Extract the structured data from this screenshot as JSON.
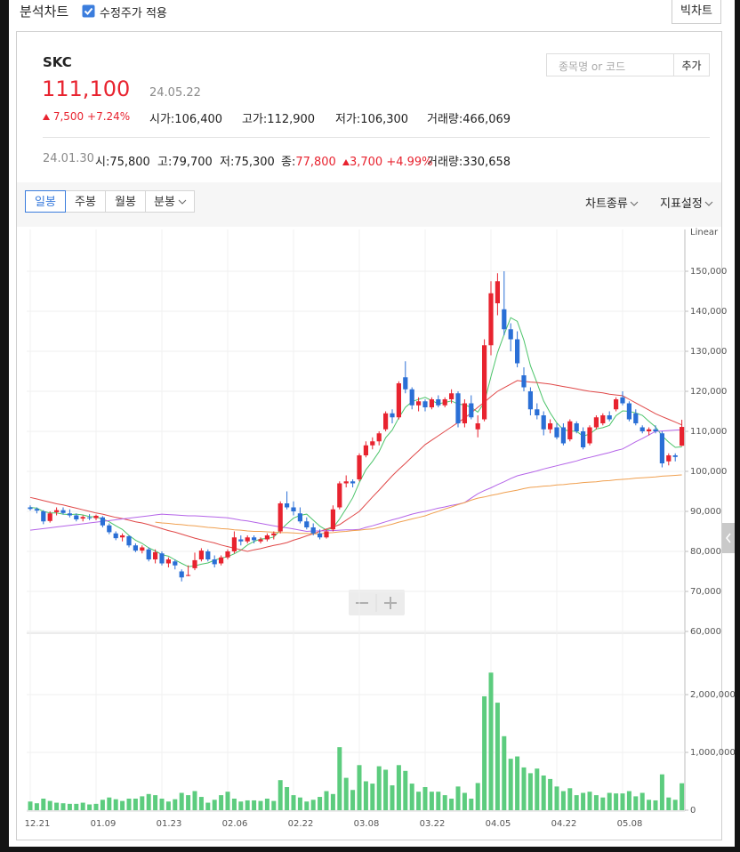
{
  "ui": {
    "top": {
      "title": "분석차트",
      "adjusted": "수정주가 적용",
      "big_chart": "빅차트"
    },
    "stock": {
      "name": "SKC",
      "price": "111,100",
      "date": "24.05.22",
      "change": "7,500",
      "change_pct": "+7.24%",
      "open": "시가:106,400",
      "high": "고가:112,900",
      "low": "저가:106,300",
      "volume": "거래량:466,069"
    },
    "search": {
      "placeholder": "종목명 or 코드",
      "button": "추가"
    },
    "hover": {
      "date": "24.01.30",
      "open": "시:75,800",
      "high": "고:79,700",
      "low": "저:75,300",
      "close_label": "종:",
      "close": "77,800",
      "change": "3,700",
      "change_pct": "+4.99%",
      "volume": "거래량:330,658"
    },
    "tabs": [
      "일봉",
      "주봉",
      "월봉",
      "분봉"
    ],
    "menus": [
      "차트종류",
      "지표설정"
    ]
  },
  "chart_data": {
    "type": "candlestick",
    "scale_label": "Linear",
    "categories": [
      "12.21",
      null,
      null,
      null,
      null,
      null,
      null,
      null,
      null,
      null,
      "01.09",
      null,
      null,
      null,
      null,
      null,
      null,
      null,
      null,
      null,
      "01.23",
      null,
      null,
      null,
      null,
      null,
      null,
      null,
      null,
      null,
      "02.06",
      null,
      null,
      null,
      null,
      null,
      null,
      null,
      null,
      null,
      "02.22",
      null,
      null,
      null,
      null,
      null,
      null,
      null,
      null,
      null,
      "03.08",
      null,
      null,
      null,
      null,
      null,
      null,
      null,
      null,
      null,
      "03.22",
      null,
      null,
      null,
      null,
      null,
      null,
      null,
      null,
      null,
      "04.05",
      null,
      null,
      null,
      null,
      null,
      null,
      null,
      null,
      null,
      "04.22",
      null,
      null,
      null,
      null,
      null,
      null,
      null,
      null,
      null,
      "05.08",
      null,
      null,
      null,
      null,
      null,
      null,
      null,
      null,
      null
    ],
    "open": [
      91000,
      90600,
      90000,
      87600,
      89800,
      90300,
      89500,
      89000,
      88200,
      88500,
      88300,
      88500,
      86500,
      84500,
      83500,
      83800,
      81500,
      80200,
      80500,
      78000,
      79500,
      77000,
      77500,
      75000,
      74000,
      75800,
      78000,
      80000,
      78000,
      77000,
      78500,
      80000,
      83000,
      82500,
      83500,
      82500,
      83000,
      84000,
      85000,
      92000,
      91000,
      89500,
      87500,
      86000,
      84500,
      83500,
      85500,
      91000,
      97000,
      97500,
      98000,
      104000,
      106500,
      107500,
      110500,
      114500,
      113500,
      123500,
      120500,
      116500,
      117500,
      116000,
      118000,
      116500,
      118000,
      119500,
      112000,
      117000,
      110500,
      113000,
      131500,
      142000,
      140500,
      135500,
      133000,
      124000,
      120000,
      115500,
      114000,
      110500,
      111000,
      111000,
      108000,
      112000,
      110000,
      107000,
      111000,
      112000,
      114000,
      115500,
      118500,
      117000,
      114500,
      111000,
      110000,
      110500,
      109500,
      102500,
      104000,
      106400
    ],
    "high": [
      91500,
      91000,
      90300,
      90000,
      91000,
      91000,
      90500,
      89500,
      89000,
      89300,
      89200,
      88800,
      87000,
      85000,
      84500,
      84000,
      82000,
      81500,
      81000,
      80500,
      80000,
      78500,
      78000,
      75500,
      76500,
      79700,
      80800,
      80500,
      79000,
      79000,
      80500,
      85000,
      84000,
      84000,
      84000,
      83500,
      84500,
      85000,
      92500,
      95000,
      92500,
      91000,
      88500,
      87000,
      85500,
      85500,
      91500,
      97500,
      99000,
      98000,
      104500,
      107500,
      108500,
      110000,
      115000,
      115500,
      122500,
      127500,
      121000,
      118500,
      118000,
      118500,
      119000,
      118500,
      120500,
      120000,
      118000,
      119000,
      114000,
      133000,
      147500,
      149500,
      150000,
      137000,
      135000,
      126000,
      121000,
      117000,
      115000,
      113000,
      112000,
      112000,
      113000,
      112500,
      111000,
      111500,
      114000,
      114500,
      115000,
      118500,
      120000,
      117500,
      115500,
      111500,
      111000,
      111500,
      110000,
      104500,
      104500,
      112900
    ],
    "low": [
      90200,
      89500,
      86800,
      87200,
      89000,
      89200,
      88500,
      87500,
      87500,
      87800,
      87800,
      86000,
      84300,
      82800,
      82500,
      81000,
      79800,
      79500,
      77500,
      77000,
      76500,
      76000,
      75500,
      72500,
      73800,
      75300,
      77500,
      77500,
      76000,
      76500,
      78000,
      79500,
      81500,
      82000,
      82000,
      82000,
      82500,
      83000,
      84500,
      90500,
      89000,
      87000,
      85500,
      84000,
      83000,
      83200,
      85000,
      90500,
      96000,
      96000,
      97500,
      103500,
      105500,
      106500,
      110000,
      112000,
      113000,
      119500,
      115500,
      115000,
      115000,
      115500,
      116000,
      116000,
      117000,
      111000,
      111000,
      113000,
      108500,
      112500,
      129000,
      139000,
      134000,
      130000,
      126000,
      120000,
      114000,
      113000,
      109000,
      109500,
      108000,
      106500,
      107500,
      109500,
      105500,
      106500,
      110500,
      111500,
      112500,
      115000,
      116500,
      112500,
      111500,
      109500,
      109000,
      109500,
      101000,
      101500,
      102500,
      106300
    ],
    "close": [
      90600,
      90200,
      87500,
      89500,
      90300,
      89600,
      89000,
      88000,
      88600,
      88300,
      88900,
      86500,
      84800,
      83300,
      84000,
      81500,
      80200,
      81000,
      78000,
      79800,
      77000,
      78000,
      76500,
      73500,
      74100,
      77800,
      80200,
      78000,
      76800,
      78500,
      80000,
      83500,
      82500,
      83500,
      82800,
      83000,
      84000,
      84500,
      92000,
      91000,
      90000,
      87500,
      86000,
      84500,
      83500,
      85000,
      90500,
      97000,
      97500,
      97000,
      104000,
      106500,
      107500,
      109500,
      114500,
      113500,
      122000,
      120500,
      116500,
      117500,
      116000,
      118000,
      116500,
      118000,
      119500,
      112000,
      117000,
      113500,
      112000,
      131500,
      144500,
      147500,
      135500,
      133000,
      127000,
      121000,
      115500,
      114000,
      110500,
      112000,
      108500,
      107000,
      112500,
      110000,
      106000,
      111000,
      113500,
      114000,
      113000,
      118000,
      117000,
      113000,
      112000,
      110000,
      110500,
      110000,
      102000,
      104000,
      103600,
      111100
    ],
    "up_color": "#e8232f",
    "down_color": "#2a6fd6",
    "series": [
      {
        "color": "#4cc46a",
        "values": [
          91000,
          90800,
          90000,
          89600,
          89600,
          89300,
          89200,
          89300,
          89100,
          88700,
          88600,
          88100,
          87400,
          86400,
          85500,
          84000,
          82800,
          82000,
          80900,
          80100,
          79200,
          78800,
          77900,
          77000,
          76200,
          76400,
          76800,
          77100,
          77800,
          78300,
          78700,
          79400,
          80300,
          81600,
          82500,
          83100,
          83200,
          83600,
          85300,
          86900,
          88300,
          89000,
          89300,
          87800,
          86300,
          85300,
          85900,
          88100,
          90700,
          93400,
          97200,
          100400,
          102500,
          104900,
          108400,
          110300,
          113400,
          116000,
          117400,
          118000,
          118500,
          117700,
          116900,
          117200,
          117600,
          116800,
          116600,
          116000,
          114800,
          117200,
          123700,
          129700,
          134200,
          138400,
          137500,
          132800,
          126400,
          122100,
          117600,
          114600,
          112100,
          110400,
          110100,
          110000,
          108800,
          109300,
          110600,
          110900,
          111500,
          113900,
          115100,
          115000,
          114600,
          114000,
          112500,
          111100,
          108900,
          107300,
          106000,
          106100
        ]
      },
      {
        "color": "#e04848",
        "values": [
          93500,
          93100,
          92700,
          92300,
          91900,
          91600,
          91200,
          90800,
          90400,
          90000,
          89600,
          89300,
          88900,
          88500,
          88200,
          87800,
          87400,
          87100,
          86700,
          86200,
          85700,
          85200,
          84800,
          84300,
          83800,
          83300,
          82900,
          82500,
          82100,
          81600,
          81200,
          80800,
          80400,
          80000,
          80400,
          80700,
          81100,
          81500,
          81800,
          82200,
          82800,
          83300,
          83900,
          84400,
          85000,
          85600,
          86100,
          86700,
          87800,
          88900,
          90000,
          91800,
          93600,
          95300,
          97100,
          98900,
          100500,
          102000,
          103600,
          105100,
          106700,
          107800,
          108900,
          110000,
          111100,
          112200,
          113300,
          114600,
          116000,
          117300,
          118700,
          120000,
          120900,
          121800,
          122700,
          122500,
          122300,
          122200,
          122000,
          121800,
          121500,
          121200,
          120900,
          120600,
          120300,
          120000,
          119800,
          119600,
          119300,
          119100,
          118900,
          118000,
          117100,
          116200,
          115300,
          114400,
          113700,
          113000,
          112300,
          111600
        ]
      },
      {
        "color": "#b565e8",
        "values": [
          85300,
          85500,
          85700,
          85900,
          86100,
          86300,
          86500,
          86700,
          86900,
          87100,
          87300,
          87500,
          87700,
          87900,
          88100,
          88300,
          88500,
          88700,
          88900,
          89100,
          89300,
          89200,
          89100,
          89000,
          88900,
          88900,
          88800,
          88700,
          88600,
          88500,
          88400,
          88100,
          87800,
          87600,
          87300,
          87000,
          86700,
          86400,
          86100,
          85900,
          85600,
          85300,
          85000,
          85100,
          85100,
          85200,
          85200,
          85300,
          85400,
          85400,
          85500,
          86000,
          86400,
          86900,
          87400,
          87900,
          88300,
          88800,
          89300,
          89700,
          90000,
          90400,
          90800,
          91100,
          91500,
          91800,
          92200,
          93300,
          94400,
          95200,
          95900,
          96700,
          97400,
          98200,
          98900,
          99300,
          99700,
          100100,
          100600,
          101000,
          101400,
          101800,
          102200,
          102600,
          103100,
          103500,
          103900,
          104300,
          104700,
          105200,
          105600,
          106500,
          107400,
          108200,
          109100,
          110000,
          110100,
          110200,
          110300,
          110400
        ]
      },
      {
        "color": "#f0a050",
        "values": [
          null,
          null,
          null,
          null,
          null,
          null,
          null,
          null,
          null,
          null,
          null,
          null,
          null,
          null,
          null,
          null,
          null,
          null,
          null,
          87300,
          87100,
          87000,
          86800,
          86700,
          86500,
          86400,
          86200,
          86000,
          85900,
          85700,
          85600,
          85400,
          85300,
          85100,
          85000,
          85000,
          84900,
          84800,
          84700,
          84700,
          84600,
          84500,
          84500,
          84400,
          84400,
          84600,
          84700,
          84900,
          85000,
          85200,
          85300,
          85500,
          85600,
          86000,
          86400,
          86800,
          87300,
          87700,
          88100,
          88500,
          88900,
          89500,
          90000,
          90600,
          91100,
          91700,
          92200,
          92800,
          93300,
          93600,
          94000,
          94300,
          94700,
          95000,
          95300,
          95700,
          96000,
          96100,
          96300,
          96400,
          96600,
          96700,
          96900,
          97000,
          97200,
          97300,
          97400,
          97600,
          97700,
          97900,
          98000,
          98100,
          98300,
          98400,
          98500,
          98600,
          98800,
          98900,
          99000,
          99100
        ]
      }
    ],
    "ylim": [
      60000,
      160000
    ],
    "yticks": [
      {
        "value": 60000,
        "label": "60,000"
      },
      {
        "value": 70000,
        "label": "70,000"
      },
      {
        "value": 80000,
        "label": "80,000"
      },
      {
        "value": 90000,
        "label": "90,000"
      },
      {
        "value": 100000,
        "label": "100,000"
      },
      {
        "value": 110000,
        "label": "110,000"
      },
      {
        "value": 120000,
        "label": "120,000"
      },
      {
        "value": 130000,
        "label": "130,000"
      },
      {
        "value": 140000,
        "label": "140,000"
      },
      {
        "value": 150000,
        "label": "150,000"
      }
    ],
    "volume": [
      150000,
      120000,
      200000,
      160000,
      130000,
      120000,
      110000,
      110000,
      130000,
      100000,
      110000,
      180000,
      220000,
      190000,
      160000,
      200000,
      200000,
      240000,
      280000,
      260000,
      200000,
      150000,
      190000,
      300000,
      260000,
      330658,
      230000,
      130000,
      180000,
      260000,
      320000,
      200000,
      150000,
      170000,
      170000,
      160000,
      200000,
      160000,
      520000,
      400000,
      260000,
      220000,
      150000,
      180000,
      230000,
      330000,
      280000,
      1090000,
      560000,
      350000,
      780000,
      500000,
      460000,
      760000,
      700000,
      430000,
      780000,
      680000,
      460000,
      320000,
      400000,
      320000,
      320000,
      260000,
      200000,
      410000,
      300000,
      200000,
      470000,
      1970000,
      2380000,
      1860000,
      1280000,
      890000,
      930000,
      740000,
      640000,
      720000,
      600000,
      540000,
      410000,
      330000,
      380000,
      260000,
      300000,
      320000,
      260000,
      220000,
      300000,
      290000,
      290000,
      330000,
      240000,
      300000,
      180000,
      170000,
      620000,
      220000,
      180000,
      466069
    ],
    "volume_color": "#5ccc7e",
    "volume_ylim": [
      0,
      3000000
    ],
    "volume_yticks": [
      0,
      {
        "value": 1000000,
        "label": "1,000,000"
      },
      {
        "value": 2000000,
        "label": "2,000,000"
      }
    ],
    "grid": true
  }
}
